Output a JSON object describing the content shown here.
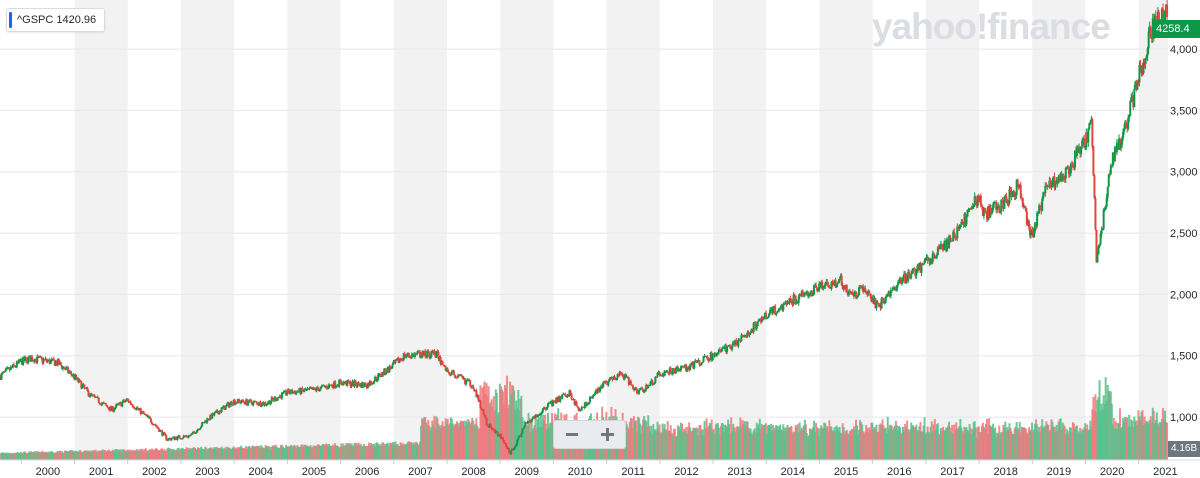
{
  "ticker": {
    "symbol": "^GSPC",
    "value": "1420.96",
    "marker_color": "#0f69ff"
  },
  "watermark": "yahoo!finance",
  "last_price_label": "4258.4",
  "volume_label": "4.16B",
  "zoom": {
    "out_label": "−",
    "in_label": "+"
  },
  "colors": {
    "up": "#0c9848",
    "down": "#e0473f",
    "up_volume": "#53c08b",
    "down_volume": "#f0787b",
    "band": "#f2f2f2"
  },
  "chart_data": {
    "type": "line",
    "style": "candlestick with volume bars",
    "xlabel": "",
    "ylabel": "",
    "xlim": [
      1999.6,
      2021.55
    ],
    "ylim": [
      650,
      4400
    ],
    "grid": true,
    "x_ticks": [
      "2000",
      "2001",
      "2002",
      "2003",
      "2004",
      "2005",
      "2006",
      "2007",
      "2008",
      "2009",
      "2010",
      "2011",
      "2012",
      "2013",
      "2014",
      "2015",
      "2016",
      "2017",
      "2018",
      "2019",
      "2020",
      "2021"
    ],
    "y_ticks": [
      "1,000",
      "1,500",
      "2,000",
      "2,500",
      "3,000",
      "3,500",
      "4,000"
    ],
    "y_tick_values": [
      1000,
      1500,
      2000,
      2500,
      3000,
      3500,
      4000
    ],
    "series": [
      {
        "name": "^GSPC",
        "x": [
          1999.6,
          2000.0,
          2000.2,
          2000.7,
          2001.0,
          2001.3,
          2001.7,
          2002.0,
          2002.5,
          2002.75,
          2003.2,
          2003.5,
          2004.0,
          2004.6,
          2005.0,
          2005.5,
          2006.0,
          2006.5,
          2007.0,
          2007.2,
          2007.8,
          2008.0,
          2008.5,
          2008.75,
          2009.0,
          2009.2,
          2009.5,
          2010.0,
          2010.3,
          2010.5,
          2011.0,
          2011.3,
          2011.6,
          2011.8,
          2012.0,
          2012.5,
          2013.0,
          2013.5,
          2014.0,
          2014.5,
          2015.0,
          2015.4,
          2015.65,
          2015.8,
          2016.1,
          2016.5,
          2017.0,
          2017.5,
          2018.0,
          2018.1,
          2018.5,
          2018.75,
          2018.98,
          2019.3,
          2019.6,
          2020.0,
          2020.12,
          2020.22,
          2020.5,
          2020.75,
          2021.0,
          2021.25,
          2021.5
        ],
        "close": [
          1330,
          1450,
          1480,
          1440,
          1330,
          1180,
          1060,
          1140,
          950,
          820,
          850,
          980,
          1130,
          1110,
          1200,
          1220,
          1280,
          1260,
          1420,
          1500,
          1520,
          1380,
          1260,
          950,
          850,
          700,
          950,
          1120,
          1200,
          1060,
          1280,
          1350,
          1200,
          1250,
          1350,
          1400,
          1500,
          1620,
          1830,
          1950,
          2050,
          2110,
          1980,
          2050,
          1900,
          2100,
          2250,
          2450,
          2800,
          2650,
          2750,
          2900,
          2450,
          2900,
          2950,
          3250,
          3380,
          2250,
          3100,
          3350,
          3750,
          4150,
          4300
        ]
      },
      {
        "name": "Volume",
        "unit": "billions",
        "last": 4.16
      }
    ]
  }
}
